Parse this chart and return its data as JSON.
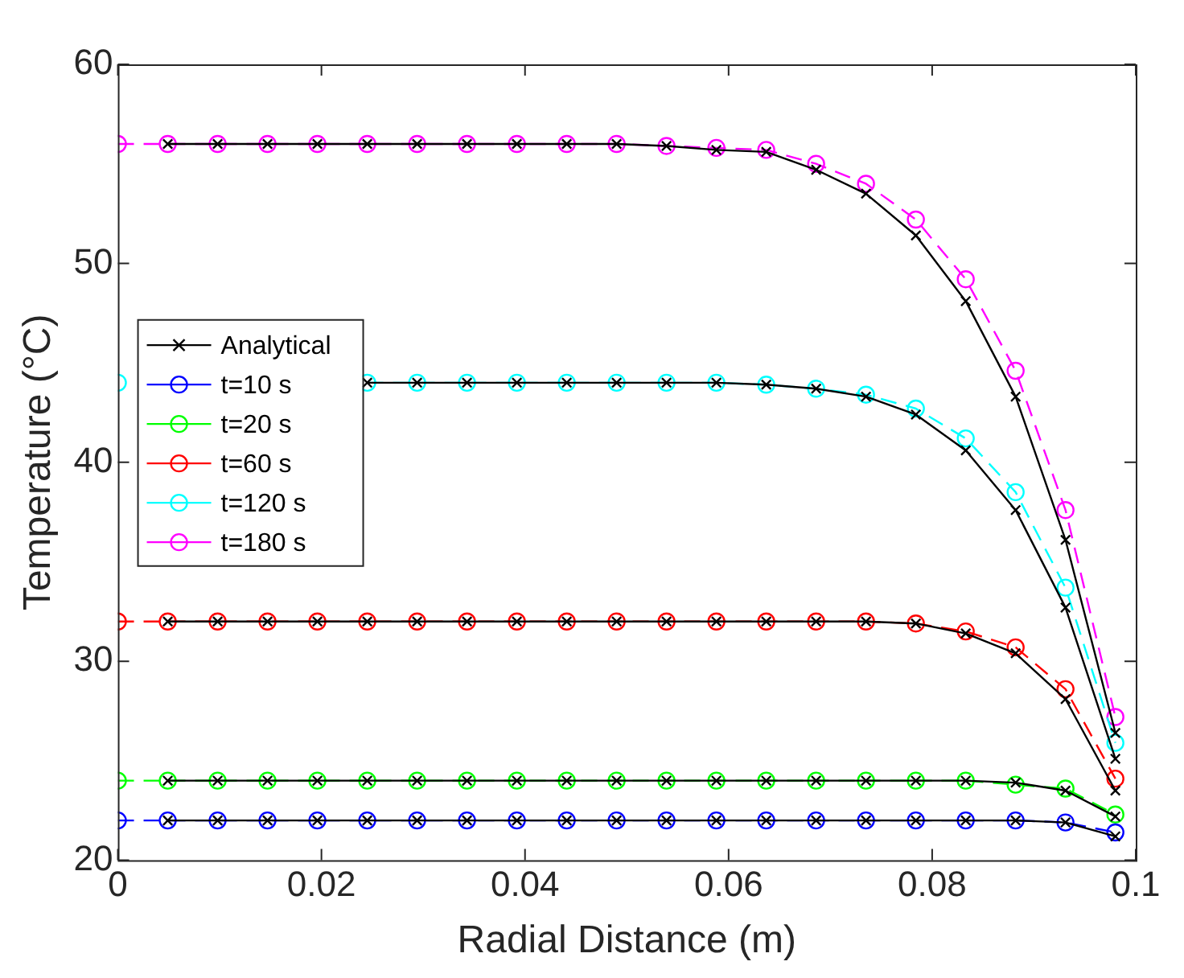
{
  "chart_data": {
    "type": "line",
    "xlabel": "Radial Distance (m)",
    "ylabel": "Temperature (°C)",
    "x": [
      0,
      0.0049,
      0.0098,
      0.0147,
      0.0196,
      0.0245,
      0.0294,
      0.0343,
      0.0392,
      0.0441,
      0.049,
      0.0539,
      0.0588,
      0.0637,
      0.0686,
      0.0735,
      0.0784,
      0.0833,
      0.0882,
      0.0931,
      0.098
    ],
    "xlim": [
      0,
      0.1
    ],
    "xticks": [
      0,
      0.02,
      0.04,
      0.06,
      0.08,
      0.1
    ],
    "ylim": [
      20,
      60
    ],
    "yticks": [
      20,
      30,
      40,
      50,
      60
    ],
    "grid": false,
    "legend": "left",
    "series": [
      {
        "name": "Analytical",
        "color": "#000000",
        "marker": "cross",
        "line_style": "solid",
        "x": [
          0.0049,
          0.0098,
          0.0147,
          0.0196,
          0.0245,
          0.0294,
          0.0343,
          0.0392,
          0.0441,
          0.049,
          0.0539,
          0.0588,
          0.0637,
          0.0686,
          0.0735,
          0.0784,
          0.0833,
          0.0882,
          0.0931,
          0.098
        ],
        "values": [
          22,
          22,
          22,
          22,
          22,
          22,
          22,
          22,
          22,
          22,
          22,
          22,
          22,
          22,
          22,
          22,
          22,
          22,
          21.9,
          21.2
        ]
      },
      {
        "color": "#000000",
        "marker": "cross",
        "line_style": "solid",
        "x": [
          0.0049,
          0.0098,
          0.0147,
          0.0196,
          0.0245,
          0.0294,
          0.0343,
          0.0392,
          0.0441,
          0.049,
          0.0539,
          0.0588,
          0.0637,
          0.0686,
          0.0735,
          0.0784,
          0.0833,
          0.0882,
          0.0931,
          0.098
        ],
        "values": [
          24,
          24,
          24,
          24,
          24,
          24,
          24,
          24,
          24,
          24,
          24,
          24,
          24,
          24,
          24,
          24,
          24,
          23.9,
          23.5,
          22.2
        ]
      },
      {
        "color": "#000000",
        "marker": "cross",
        "line_style": "solid",
        "x": [
          0.0049,
          0.0098,
          0.0147,
          0.0196,
          0.0245,
          0.0294,
          0.0343,
          0.0392,
          0.0441,
          0.049,
          0.0539,
          0.0588,
          0.0637,
          0.0686,
          0.0735,
          0.0784,
          0.0833,
          0.0882,
          0.0931,
          0.098
        ],
        "values": [
          32,
          32,
          32,
          32,
          32,
          32,
          32,
          32,
          32,
          32,
          32,
          32,
          32,
          32,
          32,
          31.9,
          31.4,
          30.4,
          28.1,
          23.5
        ]
      },
      {
        "color": "#000000",
        "marker": "cross",
        "line_style": "solid",
        "x": [
          0.0245,
          0.0294,
          0.0343,
          0.0392,
          0.0441,
          0.049,
          0.0539,
          0.0588,
          0.0637,
          0.0686,
          0.0735,
          0.0784,
          0.0833,
          0.0882,
          0.0931,
          0.098
        ],
        "values": [
          44,
          44,
          44,
          44,
          44,
          44,
          44,
          44,
          43.9,
          43.7,
          43.3,
          42.4,
          40.6,
          37.6,
          32.7,
          25.1
        ]
      },
      {
        "color": "#000000",
        "marker": "cross",
        "line_style": "solid",
        "x": [
          0.0049,
          0.0098,
          0.0147,
          0.0196,
          0.0245,
          0.0294,
          0.0343,
          0.0392,
          0.0441,
          0.049,
          0.0539,
          0.0588,
          0.0637,
          0.0686,
          0.0735,
          0.0784,
          0.0833,
          0.0882,
          0.0931,
          0.098
        ],
        "values": [
          56,
          56,
          56,
          56,
          56,
          56,
          56,
          56,
          56,
          56,
          55.9,
          55.7,
          55.6,
          54.7,
          53.5,
          51.4,
          48.1,
          43.3,
          36.1,
          26.4
        ]
      },
      {
        "name": "t=10 s",
        "color": "#0000ff",
        "marker": "circle",
        "line_style": "dashed",
        "values": [
          22,
          22,
          22,
          22,
          22,
          22,
          22,
          22,
          22,
          22,
          22,
          22,
          22,
          22,
          22,
          22,
          22,
          22,
          22,
          21.9,
          21.4
        ]
      },
      {
        "name": "t=20 s",
        "color": "#00ff00",
        "marker": "circle",
        "line_style": "dashed",
        "values": [
          24,
          24,
          24,
          24,
          24,
          24,
          24,
          24,
          24,
          24,
          24,
          24,
          24,
          24,
          24,
          24,
          24,
          24,
          23.8,
          23.6,
          22.3
        ]
      },
      {
        "name": "t=60 s",
        "color": "#ff0000",
        "marker": "circle",
        "line_style": "dashed",
        "values": [
          32,
          32,
          32,
          32,
          32,
          32,
          32,
          32,
          32,
          32,
          32,
          32,
          32,
          32,
          32,
          32,
          31.9,
          31.5,
          30.7,
          28.6,
          24.1
        ]
      },
      {
        "name": "t=120 s",
        "color": "#00ffff",
        "marker": "circle",
        "line_style": "dashed",
        "values": [
          44,
          null,
          null,
          null,
          null,
          44,
          44,
          44,
          44,
          44,
          44,
          44,
          44,
          43.9,
          43.7,
          43.4,
          42.7,
          41.2,
          38.5,
          33.7,
          25.9
        ]
      },
      {
        "name": "t=180 s",
        "color": "#ff00ff",
        "marker": "circle",
        "line_style": "dashed",
        "values": [
          56,
          56,
          56,
          56,
          56,
          56,
          56,
          56,
          56,
          56,
          56,
          55.9,
          55.8,
          55.7,
          55.0,
          54.0,
          52.2,
          49.2,
          44.6,
          37.6,
          27.2
        ]
      }
    ]
  }
}
